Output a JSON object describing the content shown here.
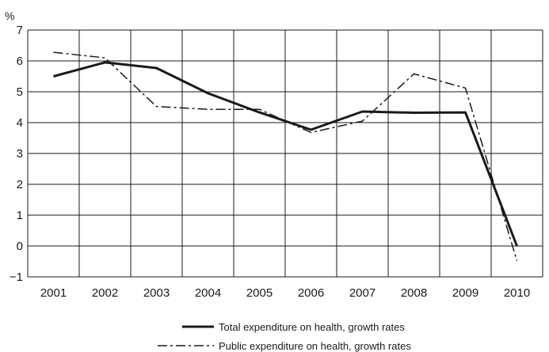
{
  "chart_data": {
    "type": "line",
    "unit_label": "%",
    "categories": [
      "2001",
      "2002",
      "2003",
      "2004",
      "2005",
      "2006",
      "2007",
      "2008",
      "2009",
      "2010"
    ],
    "ylim": [
      -1,
      7
    ],
    "yticks": [
      "−1",
      "0",
      "1",
      "2",
      "3",
      "4",
      "5",
      "6",
      "7"
    ],
    "grid": true,
    "legend_position": "bottom",
    "series": [
      {
        "name": "Total expenditure on health, growth rates",
        "style": "solid",
        "color": "#1a1a1a",
        "values": [
          5.5,
          5.95,
          5.77,
          4.95,
          4.33,
          3.77,
          4.36,
          4.32,
          4.33,
          0.0
        ]
      },
      {
        "name": "Public expenditure on health, growth rates",
        "style": "dash-dot",
        "color": "#1a1a1a",
        "values": [
          6.28,
          6.1,
          4.52,
          4.43,
          4.43,
          3.68,
          4.05,
          5.58,
          5.12,
          -0.48
        ]
      }
    ]
  }
}
